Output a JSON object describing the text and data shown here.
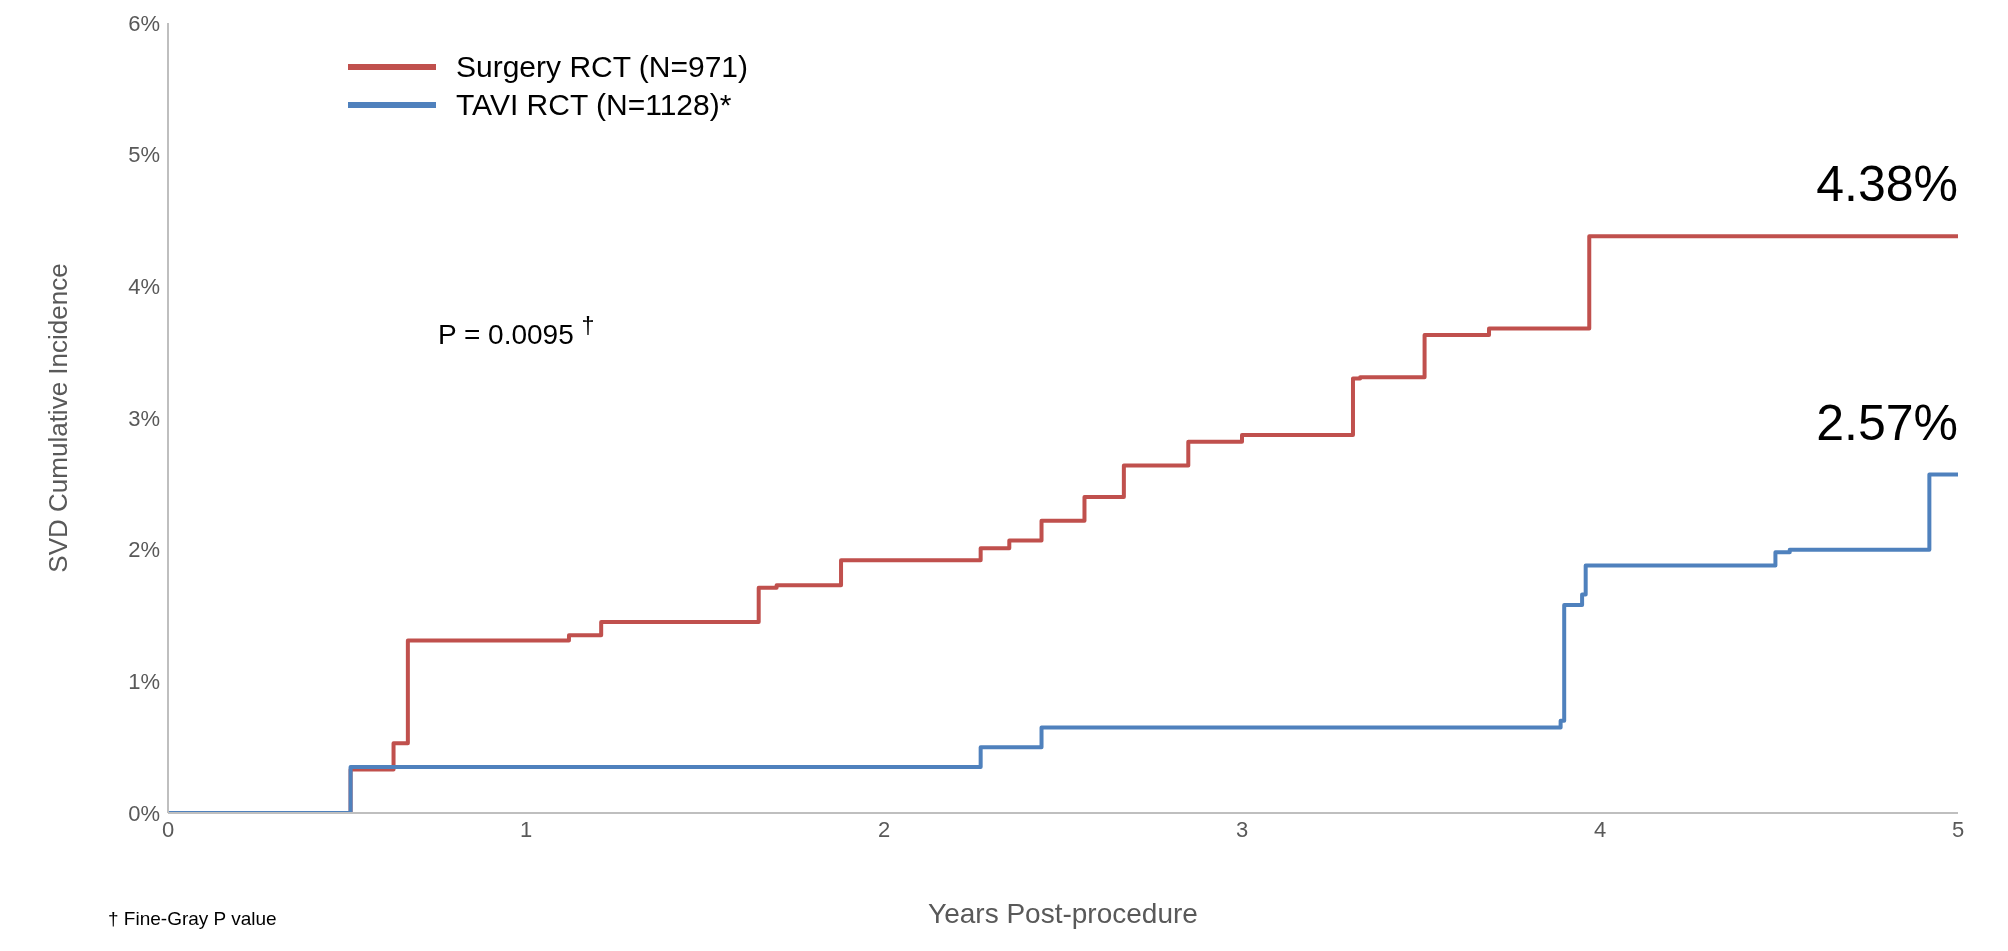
{
  "chart_data": {
    "type": "step",
    "xlabel": "Years Post-procedure",
    "ylabel": "SVD Cumulative Incidence",
    "xlim": [
      0,
      5
    ],
    "xticks": [
      0,
      1,
      2,
      3,
      4,
      5
    ],
    "ylim": [
      0,
      6
    ],
    "yticks": [
      {
        "value": 0,
        "label": "0%"
      },
      {
        "value": 1,
        "label": "1%"
      },
      {
        "value": 2,
        "label": "2%"
      },
      {
        "value": 3,
        "label": "3%"
      },
      {
        "value": 4,
        "label": "4%"
      },
      {
        "value": 5,
        "label": "5%"
      },
      {
        "value": 6,
        "label": "6%"
      }
    ],
    "grid": false,
    "legend": "top left",
    "marker": "none",
    "line_style": "solid",
    "series": [
      {
        "name": "Surgery RCT (N=971)",
        "color": "#c0504d",
        "x": [
          0,
          0.5,
          0.51,
          0.63,
          0.67,
          1.12,
          1.21,
          1.65,
          1.7,
          1.88,
          2.27,
          2.35,
          2.44,
          2.56,
          2.67,
          2.85,
          3.0,
          3.31,
          3.33,
          3.51,
          3.69,
          3.97,
          5
        ],
        "values": [
          0,
          0,
          0.33,
          0.53,
          1.31,
          1.35,
          1.45,
          1.71,
          1.73,
          1.92,
          2.01,
          2.07,
          2.22,
          2.4,
          2.64,
          2.82,
          2.87,
          3.3,
          3.31,
          3.63,
          3.68,
          4.38,
          4.38
        ]
      },
      {
        "name": "TAVI RCT (N=1128)*",
        "color": "#4f81bd",
        "x": [
          0,
          0.5,
          0.51,
          2.27,
          2.44,
          3.89,
          3.9,
          3.95,
          3.96,
          4.49,
          4.53,
          4.92,
          5
        ],
        "values": [
          0,
          0,
          0.35,
          0.5,
          0.65,
          0.7,
          1.58,
          1.66,
          1.88,
          1.98,
          2.0,
          2.57,
          2.57
        ]
      }
    ],
    "annotations": [
      {
        "text": "4.38%",
        "x": 5,
        "y": 4.38
      },
      {
        "text": "2.57%",
        "x": 5,
        "y": 2.57
      },
      "P = 0.0095 $^{†}$",
      "† Fine-Gray P value"
    ]
  }
}
